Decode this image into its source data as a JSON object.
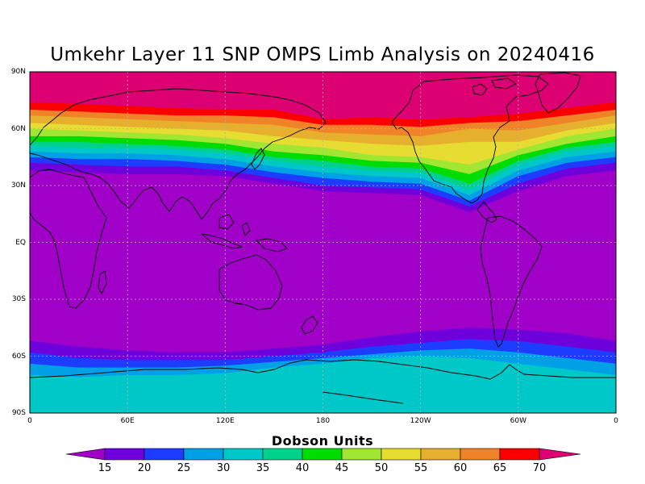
{
  "title": "Umkehr Layer 11 SNP OMPS Limb Analysis on 20240416",
  "lat_ticks": [
    "90N",
    "60N",
    "30N",
    "EQ",
    "30S",
    "60S",
    "90S"
  ],
  "lon_ticks": [
    "0",
    "60E",
    "120E",
    "180",
    "120W",
    "60W",
    "0"
  ],
  "colorbar": {
    "units_label": "Dobson Units",
    "ticks": [
      "15",
      "20",
      "25",
      "30",
      "35",
      "40",
      "45",
      "50",
      "55",
      "60",
      "65",
      "70"
    ],
    "colors": [
      "#a000c8",
      "#6e00dc",
      "#1e3cff",
      "#00a0e6",
      "#00c8c8",
      "#00d28c",
      "#00dc00",
      "#a0e632",
      "#e6dc32",
      "#e6af2d",
      "#f08228",
      "#fa0000",
      "#dc0073"
    ]
  },
  "chart_data": {
    "type": "heatmap",
    "title": "Umkehr Layer 11 SNP OMPS Limb Analysis on 20240416",
    "variable_units": "Dobson Units",
    "lon_range": [
      0,
      360
    ],
    "lat_range": [
      -90,
      90
    ],
    "levels": [
      15,
      20,
      25,
      30,
      35,
      40,
      45,
      50,
      55,
      60,
      65,
      70
    ],
    "grid": true,
    "nh_contours_lat_by_lon": {
      "lon": [
        0,
        30,
        60,
        90,
        120,
        150,
        180,
        210,
        240,
        270,
        300,
        330,
        360
      ],
      "15": [
        38,
        37,
        36,
        36,
        35,
        31,
        27,
        26,
        25,
        16,
        27,
        35,
        38
      ],
      "20": [
        42,
        41,
        40,
        40,
        38,
        34,
        30,
        29,
        28,
        19,
        31,
        39,
        42
      ],
      "25": [
        45,
        44,
        44,
        43,
        41,
        37,
        34,
        32,
        31,
        22,
        35,
        42,
        45
      ],
      "30": [
        48,
        47,
        47,
        46,
        44,
        40,
        37,
        35,
        34,
        25,
        38,
        45,
        48
      ],
      "35": [
        51,
        50,
        50,
        49,
        47,
        43,
        40,
        38,
        37,
        28,
        41,
        48,
        51
      ],
      "40": [
        53,
        53,
        52,
        51,
        49,
        45,
        43,
        40,
        39,
        31,
        43,
        50,
        53
      ],
      "45": [
        56,
        56,
        55,
        54,
        52,
        48,
        46,
        43,
        42,
        36,
        46,
        52,
        56
      ],
      "50": [
        60,
        59,
        58,
        57,
        55,
        52,
        50,
        46,
        45,
        41,
        49,
        56,
        60
      ],
      "55": [
        63,
        62,
        61,
        60,
        59,
        56,
        54,
        52,
        51,
        53,
        53,
        59,
        63
      ],
      "60": [
        67,
        66,
        65,
        64,
        63,
        62,
        58,
        57,
        56,
        60,
        59,
        63,
        67
      ],
      "65": [
        70,
        69,
        68,
        67,
        67,
        66,
        62,
        62,
        61,
        63,
        64,
        67,
        70
      ],
      "70": [
        74,
        73,
        72,
        71,
        70,
        70,
        65,
        66,
        65,
        66,
        68,
        71,
        74
      ]
    },
    "sh_contours_lat_by_lon": {
      "lon": [
        0,
        30,
        60,
        90,
        120,
        150,
        180,
        210,
        240,
        270,
        300,
        330,
        360
      ],
      "15": [
        -52,
        -55,
        -57,
        -58,
        -58,
        -56,
        -54,
        -50,
        -47,
        -45,
        -46,
        -48,
        -52
      ],
      "20": [
        -58,
        -61,
        -62,
        -62,
        -62,
        -60,
        -58,
        -55,
        -53,
        -51,
        -52,
        -55,
        -58
      ],
      "25": [
        -64,
        -66,
        -66,
        -66,
        -65,
        -63,
        -61,
        -59,
        -57,
        -56,
        -58,
        -61,
        -64
      ],
      "30": [
        -70,
        -71,
        -70,
        -70,
        -69,
        -66,
        -64,
        -61,
        -60,
        -61,
        -64,
        -67,
        -70
      ]
    }
  }
}
